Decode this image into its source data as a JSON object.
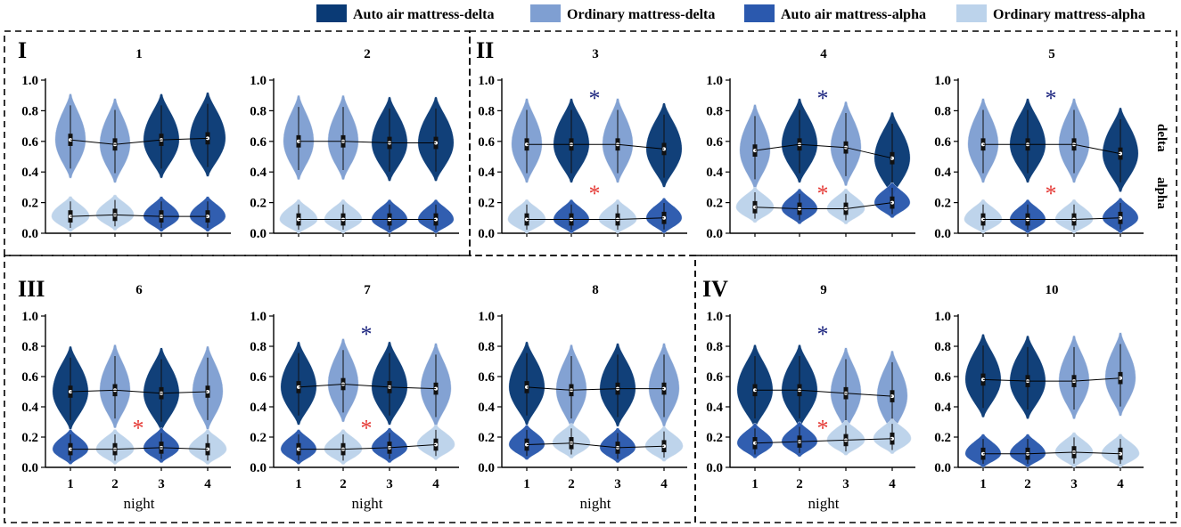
{
  "legend": [
    {
      "label": "Auto air mattress-delta",
      "color": "#0a3a75"
    },
    {
      "label": "Ordinary mattress-delta",
      "color": "#7f9fd2"
    },
    {
      "label": "Auto air mattress-alpha",
      "color": "#2b59ae"
    },
    {
      "label": "Ordinary mattress-alpha",
      "color": "#bcd3eb"
    }
  ],
  "groups": [
    {
      "label": "I",
      "panels": [
        1,
        2
      ]
    },
    {
      "label": "II",
      "panels": [
        3,
        4,
        5
      ]
    },
    {
      "label": "III",
      "panels": [
        6,
        7,
        8
      ]
    },
    {
      "label": "IV",
      "panels": [
        9,
        10
      ]
    }
  ],
  "row_labels": [
    "delta",
    "alpha"
  ],
  "chart_data": {
    "type": "violin",
    "xlabel": "night",
    "ylabel": "",
    "ylim": [
      0,
      1.0
    ],
    "yticks": [
      "0.0",
      "0.2",
      "0.4",
      "0.6",
      "0.8",
      "1.0"
    ],
    "xticks": [
      "1",
      "2",
      "3",
      "4"
    ],
    "panels": [
      {
        "title": "1",
        "delta_medians": [
          0.61,
          0.58,
          0.61,
          0.62
        ],
        "alpha_medians": [
          0.11,
          0.12,
          0.11,
          0.11
        ],
        "delta_mattress": [
          "ordinary",
          "ordinary",
          "auto",
          "auto"
        ],
        "alpha_mattress": [
          "ordinary",
          "ordinary",
          "auto",
          "auto"
        ],
        "stars": []
      },
      {
        "title": "2",
        "delta_medians": [
          0.6,
          0.6,
          0.59,
          0.59
        ],
        "alpha_medians": [
          0.09,
          0.09,
          0.09,
          0.09
        ],
        "delta_mattress": [
          "ordinary",
          "ordinary",
          "auto",
          "auto"
        ],
        "alpha_mattress": [
          "ordinary",
          "ordinary",
          "auto",
          "auto"
        ],
        "stars": []
      },
      {
        "title": "3",
        "delta_medians": [
          0.58,
          0.58,
          0.58,
          0.55
        ],
        "alpha_medians": [
          0.09,
          0.09,
          0.09,
          0.1
        ],
        "delta_mattress": [
          "ordinary",
          "auto",
          "ordinary",
          "auto"
        ],
        "alpha_mattress": [
          "ordinary",
          "auto",
          "ordinary",
          "auto"
        ],
        "stars": [
          {
            "between": "2-3",
            "row": "delta",
            "color": "#1a237e"
          },
          {
            "between": "2-3",
            "row": "alpha",
            "color": "#e53935"
          }
        ]
      },
      {
        "title": "4",
        "delta_medians": [
          0.54,
          0.58,
          0.56,
          0.49
        ],
        "alpha_medians": [
          0.17,
          0.16,
          0.16,
          0.2
        ],
        "delta_mattress": [
          "ordinary",
          "auto",
          "ordinary",
          "auto"
        ],
        "alpha_mattress": [
          "ordinary",
          "auto",
          "ordinary",
          "auto"
        ],
        "stars": [
          {
            "between": "2-3",
            "row": "delta",
            "color": "#1a237e"
          },
          {
            "between": "2-3",
            "row": "alpha",
            "color": "#e53935"
          }
        ]
      },
      {
        "title": "5",
        "delta_medians": [
          0.58,
          0.58,
          0.58,
          0.52
        ],
        "alpha_medians": [
          0.09,
          0.09,
          0.09,
          0.1
        ],
        "delta_mattress": [
          "ordinary",
          "auto",
          "ordinary",
          "auto"
        ],
        "alpha_mattress": [
          "ordinary",
          "auto",
          "ordinary",
          "auto"
        ],
        "stars": [
          {
            "between": "2-3",
            "row": "delta",
            "color": "#1a237e"
          },
          {
            "between": "2-3",
            "row": "alpha",
            "color": "#e53935"
          }
        ]
      },
      {
        "title": "6",
        "delta_medians": [
          0.5,
          0.51,
          0.49,
          0.5
        ],
        "alpha_medians": [
          0.12,
          0.12,
          0.13,
          0.12
        ],
        "delta_mattress": [
          "auto",
          "ordinary",
          "auto",
          "ordinary"
        ],
        "alpha_mattress": [
          "auto",
          "ordinary",
          "auto",
          "ordinary"
        ],
        "stars": [
          {
            "between": "2-3",
            "row": "alpha",
            "color": "#e53935"
          }
        ]
      },
      {
        "title": "7",
        "delta_medians": [
          0.53,
          0.55,
          0.53,
          0.52
        ],
        "alpha_medians": [
          0.12,
          0.12,
          0.13,
          0.15
        ],
        "delta_mattress": [
          "auto",
          "ordinary",
          "auto",
          "ordinary"
        ],
        "alpha_mattress": [
          "auto",
          "ordinary",
          "auto",
          "ordinary"
        ],
        "stars": [
          {
            "between": "2-3",
            "row": "delta",
            "color": "#1a237e"
          },
          {
            "between": "2-3",
            "row": "alpha",
            "color": "#e53935"
          }
        ]
      },
      {
        "title": "8",
        "delta_medians": [
          0.53,
          0.51,
          0.52,
          0.52
        ],
        "alpha_medians": [
          0.15,
          0.16,
          0.13,
          0.14
        ],
        "delta_mattress": [
          "auto",
          "ordinary",
          "auto",
          "ordinary"
        ],
        "alpha_mattress": [
          "auto",
          "ordinary",
          "auto",
          "ordinary"
        ],
        "stars": []
      },
      {
        "title": "9",
        "delta_medians": [
          0.51,
          0.51,
          0.49,
          0.47
        ],
        "alpha_medians": [
          0.16,
          0.17,
          0.18,
          0.19
        ],
        "delta_mattress": [
          "auto",
          "auto",
          "ordinary",
          "ordinary"
        ],
        "alpha_mattress": [
          "auto",
          "auto",
          "ordinary",
          "ordinary"
        ],
        "stars": [
          {
            "between": "2-3",
            "row": "delta",
            "color": "#1a237e"
          },
          {
            "between": "2-3",
            "row": "alpha",
            "color": "#e53935"
          }
        ]
      },
      {
        "title": "10",
        "delta_medians": [
          0.58,
          0.57,
          0.57,
          0.59
        ],
        "alpha_medians": [
          0.09,
          0.09,
          0.1,
          0.09
        ],
        "delta_mattress": [
          "auto",
          "auto",
          "ordinary",
          "ordinary"
        ],
        "alpha_mattress": [
          "auto",
          "auto",
          "ordinary",
          "ordinary"
        ],
        "stars": []
      }
    ]
  }
}
